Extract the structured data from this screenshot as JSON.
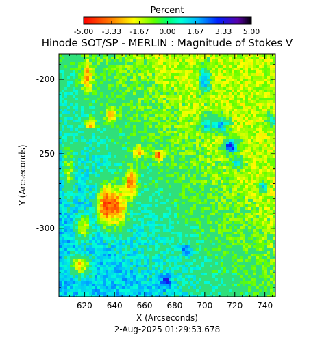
{
  "chart_data": {
    "type": "heatmap",
    "title": "Hinode SOT/SP - MERLIN : Magnitude of Stokes V",
    "xlabel": "X (Arcseconds)",
    "ylabel": "Y (Arcseconds)",
    "xlim": [
      603,
      747
    ],
    "ylim": [
      -346,
      -183
    ],
    "x_ticks": [
      "620",
      "640",
      "660",
      "680",
      "700",
      "720",
      "740"
    ],
    "x_tick_values": [
      620,
      640,
      660,
      680,
      700,
      720,
      740
    ],
    "y_ticks": [
      "-200",
      "-250",
      "-300"
    ],
    "y_tick_values": [
      -200,
      -250,
      -300
    ],
    "colorbar": {
      "label": "Percent",
      "range": [
        -5.0,
        5.0
      ],
      "tick_labels": [
        "-5.00",
        "-3.33",
        "-1.67",
        "0.00",
        "1.67",
        "3.33",
        "5.00"
      ],
      "tick_values": [
        -5.0,
        -3.33,
        -1.67,
        0.0,
        1.67,
        3.33,
        5.0
      ]
    },
    "timestamp": "2-Aug-2025 01:29:53.678",
    "colors": {
      "background": "#ffffff",
      "field_default": "#2fe07a"
    }
  }
}
